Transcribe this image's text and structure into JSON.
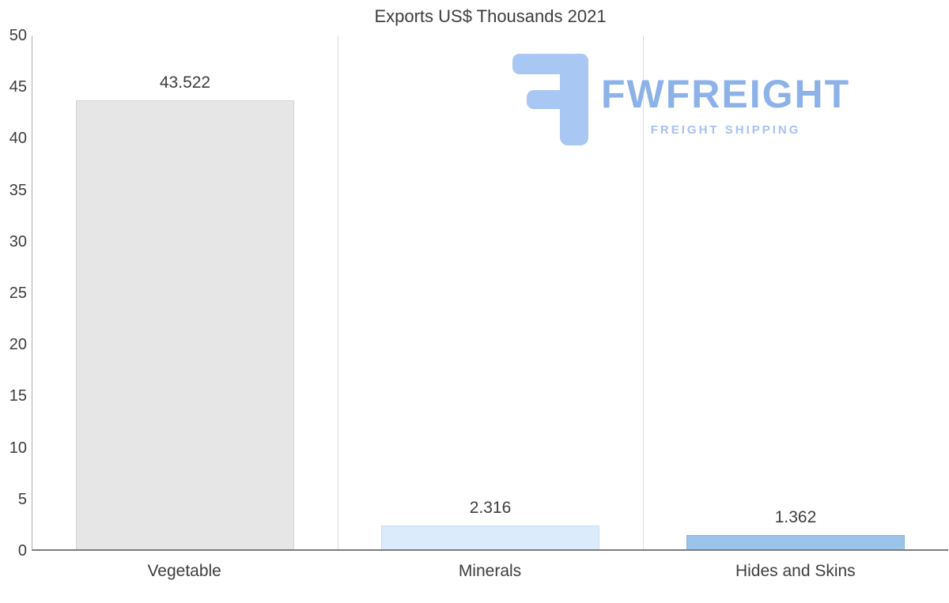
{
  "chart_data": {
    "type": "bar",
    "title": "Exports US$ Thousands 2021",
    "categories": [
      "Vegetable",
      "Minerals",
      "Hides and Skins"
    ],
    "values": [
      43.522,
      2.316,
      1.362
    ],
    "value_labels": [
      "43.522",
      "2.316",
      "1.362"
    ],
    "ylim": [
      0,
      50
    ],
    "yticks": [
      0,
      5,
      10,
      15,
      20,
      25,
      30,
      35,
      40,
      45,
      50
    ],
    "xlabel": "",
    "ylabel": "",
    "legend": "none",
    "grid": "vertical-category-separators",
    "bar_colors": [
      "#e6e6e6",
      "#dcebfc",
      "#9ac4ea"
    ],
    "bar_border_colors": [
      "#d2d2d2",
      "#c9ddf2",
      "#88b4dd"
    ]
  },
  "logo": {
    "name": "FWFREIGHT",
    "tagline": "FREIGHT SHIPPING",
    "brand_color": "#8db2e8",
    "icon": "fwfreight-f-icon"
  }
}
